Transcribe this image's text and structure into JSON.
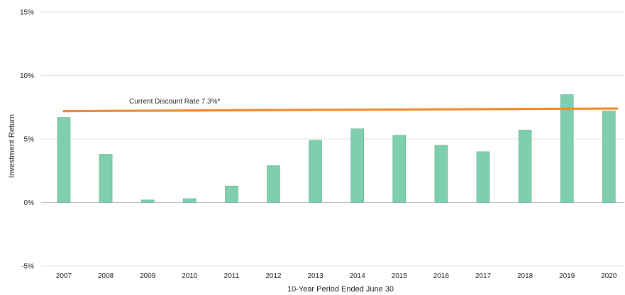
{
  "chart_data": {
    "type": "bar",
    "title": "",
    "xlabel": "10-Year Period Ended June 30",
    "ylabel": "Investment Return",
    "ylim": [
      -5,
      15
    ],
    "yticks": [
      15,
      10,
      5,
      0,
      -5
    ],
    "ytick_labels": [
      "15%",
      "10%",
      "5%",
      "0%",
      "-5%"
    ],
    "categories": [
      "2007",
      "2008",
      "2009",
      "2010",
      "2011",
      "2012",
      "2013",
      "2014",
      "2015",
      "2016",
      "2017",
      "2018",
      "2019",
      "2020"
    ],
    "values": [
      6.7,
      3.8,
      0.2,
      0.3,
      1.3,
      2.9,
      4.9,
      5.8,
      5.3,
      4.5,
      4.0,
      5.7,
      8.5,
      7.2
    ],
    "bar_color": "#7fcfae",
    "bar_edge_color": "#5fae8d",
    "reference_line": {
      "label": "Current Discount Rate 7.3%*",
      "y_start": 7.2,
      "y_end": 7.4,
      "color": "#f08a2a"
    },
    "grid": true,
    "legend": "none"
  }
}
